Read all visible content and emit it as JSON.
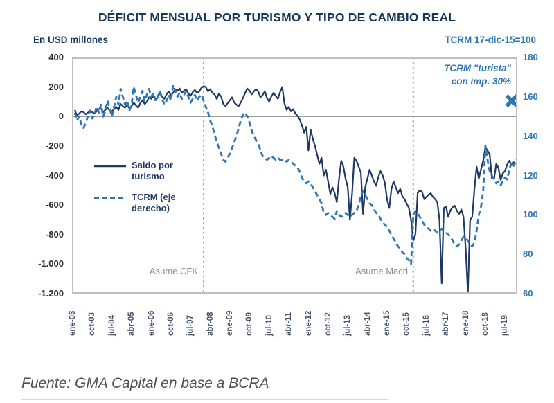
{
  "chart": {
    "title": "DÉFICIT MENSUAL POR TURISMO Y TIPO DE CAMBIO REAL",
    "left_axis": {
      "unit": "En USD millones",
      "max": 400,
      "min": -1200,
      "tick_labels": [
        "400",
        "200",
        "0",
        "-200",
        "-400",
        "-600",
        "-800",
        "-1.000",
        "-1.200"
      ],
      "tick_values": [
        400,
        200,
        0,
        -200,
        -400,
        -600,
        -800,
        -1000,
        -1200
      ]
    },
    "right_axis": {
      "unit": "TCRM 17-dic-15=100",
      "max": 180,
      "min": 60,
      "tick_labels": [
        "180",
        "160",
        "140",
        "120",
        "100",
        "80",
        "60"
      ],
      "tick_values": [
        180,
        160,
        140,
        120,
        100,
        80,
        60
      ]
    },
    "x_axis": {
      "tick_labels": [
        "ene-03",
        "oct-03",
        "jul-04",
        "abr-05",
        "ene-06",
        "oct-06",
        "jul-07",
        "abr-08",
        "ene-09",
        "oct-09",
        "jul-10",
        "abr-11",
        "ene-12",
        "oct-12",
        "jul-13",
        "abr-14",
        "ene-15",
        "oct-15",
        "jul-16",
        "abr-17",
        "ene-18",
        "oct-18",
        "jul-19"
      ],
      "tick_step_months": 9
    },
    "legend": [
      {
        "name": "Saldo por turismo",
        "style": "solid"
      },
      {
        "name": "TCRM (eje derecho)",
        "style": "dashed"
      }
    ],
    "events": [
      {
        "label": "Asume CFK",
        "month": "dic-07",
        "month_index": 59
      },
      {
        "label": "Asume Macri",
        "month": "dic-15",
        "month_index": 155
      }
    ],
    "annotation": {
      "line1": "TCRM \"turista\"",
      "line2": "con imp. 30%",
      "marker_value": 158
    },
    "colors": {
      "saldo": "#1F3864",
      "tcrm": "#2E75B6",
      "title": "#17375E",
      "border": "#BFBFBF",
      "zero_line": "#9B9B9B",
      "event_line": "#A0A0A0",
      "event_label": "#8C8C8C",
      "x_labels": "#44546A",
      "footer": "#4E4E56"
    }
  },
  "chart_data": {
    "type": "line",
    "x_start": "ene-03",
    "x_end": "nov-19",
    "x_frequency": "monthly",
    "left_ylim": [
      -1200,
      400
    ],
    "right_ylim": [
      60,
      180
    ],
    "grid": false,
    "legend_position": "center-left",
    "series": [
      {
        "name": "Saldo por turismo",
        "axis": "left",
        "style": "solid",
        "color": "#1F3864",
        "values": [
          45,
          5,
          20,
          35,
          30,
          15,
          25,
          40,
          30,
          20,
          35,
          50,
          55,
          30,
          45,
          60,
          40,
          35,
          50,
          65,
          45,
          85,
          70,
          60,
          80,
          55,
          70,
          95,
          75,
          60,
          90,
          110,
          85,
          100,
          130,
          120,
          140,
          110,
          130,
          160,
          135,
          120,
          150,
          170,
          145,
          160,
          185,
          175,
          190,
          160,
          175,
          185,
          155,
          140,
          165,
          180,
          160,
          170,
          195,
          205,
          200,
          170,
          185,
          160,
          150,
          120,
          155,
          135,
          85,
          70,
          90,
          110,
          130,
          95,
          80,
          70,
          95,
          125,
          160,
          190,
          175,
          150,
          170,
          185,
          170,
          130,
          145,
          170,
          125,
          100,
          135,
          160,
          140,
          120,
          165,
          200,
          90,
          45,
          65,
          35,
          50,
          20,
          5,
          -20,
          -60,
          -110,
          -70,
          -230,
          -90,
          -150,
          -200,
          -260,
          -320,
          -280,
          -400,
          -360,
          -440,
          -525,
          -480,
          -520,
          -580,
          -420,
          -300,
          -340,
          -420,
          -480,
          -700,
          -520,
          -280,
          -300,
          -340,
          -380,
          -660,
          -480,
          -420,
          -360,
          -400,
          -440,
          -470,
          -410,
          -370,
          -400,
          -450,
          -560,
          -620,
          -490,
          -440,
          -480,
          -520,
          -490,
          -540,
          -560,
          -590,
          -620,
          -700,
          -840,
          -800,
          -520,
          -500,
          -510,
          -560,
          -545,
          -530,
          -520,
          -545,
          -560,
          -580,
          -700,
          -1130,
          -620,
          -610,
          -680,
          -635,
          -615,
          -605,
          -640,
          -660,
          -630,
          -680,
          -900,
          -1200,
          -700,
          -680,
          -490,
          -340,
          -420,
          -360,
          -300,
          -210,
          -230,
          -260,
          -420,
          -420,
          -320,
          -350,
          -430,
          -385,
          -370,
          -325,
          -300,
          -330,
          -310,
          -320
        ]
      },
      {
        "name": "TCRM (eje derecho)",
        "axis": "right",
        "style": "dashed",
        "color": "#2E75B6",
        "values": [
          152,
          148,
          150,
          146,
          144,
          147,
          150,
          153,
          149,
          151,
          155,
          152,
          156,
          150,
          153,
          158,
          154,
          150,
          155,
          160,
          156,
          164,
          160,
          156,
          158,
          153,
          156,
          165,
          161,
          157,
          160,
          163,
          158,
          161,
          164,
          160,
          162,
          158,
          160,
          163,
          159,
          156,
          158,
          161,
          158,
          166,
          163,
          160,
          162,
          159,
          161,
          163,
          160,
          157,
          159,
          161,
          158,
          160,
          161,
          158,
          155,
          152,
          148,
          145,
          141,
          137,
          134,
          131,
          128,
          127,
          129,
          131,
          134,
          137,
          140,
          144,
          148,
          151,
          152,
          150,
          147,
          143,
          140,
          138,
          136,
          133,
          130,
          129,
          128,
          129,
          130,
          129,
          128,
          129,
          128,
          128,
          128,
          127,
          128,
          127,
          126,
          125,
          124,
          122,
          119,
          117,
          116,
          117,
          116,
          114,
          112,
          110,
          108,
          106,
          101,
          100,
          101,
          100,
          99,
          98,
          102,
          100,
          99,
          100,
          101,
          100,
          99,
          100,
          101,
          102,
          105,
          110,
          112,
          110,
          108,
          106,
          105,
          103,
          101,
          100,
          98,
          96,
          95,
          94,
          92,
          90,
          88,
          86,
          84,
          83,
          81,
          80,
          78,
          77,
          75,
          100,
          102,
          101,
          99,
          97,
          95,
          94,
          93,
          92,
          93,
          92,
          91,
          92,
          93,
          92,
          91,
          90,
          89,
          87,
          85,
          84,
          85,
          87,
          89,
          88,
          87,
          85,
          84,
          86,
          92,
          100,
          104,
          112,
          135,
          128,
          122,
          120,
          118,
          116,
          117,
          115,
          117,
          119,
          118,
          123,
          127,
          125,
          128
        ]
      }
    ],
    "annotations": [
      {
        "label": "TCRM \"turista\" con imp. 30%",
        "marker": "x",
        "axis": "right",
        "value": 158,
        "x": "nov-19"
      },
      {
        "label": "Asume CFK",
        "type": "vline",
        "x": "dic-07"
      },
      {
        "label": "Asume Macri",
        "type": "vline",
        "x": "dic-15"
      }
    ]
  },
  "footer": {
    "source": "Fuente: GMA Capital en base a BCRA"
  }
}
